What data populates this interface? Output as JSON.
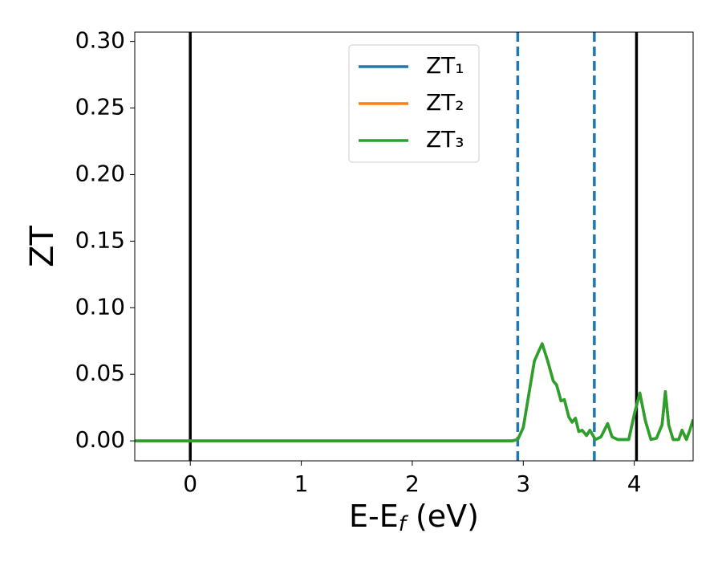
{
  "chart_data": {
    "type": "line",
    "xlabel": [
      "E-E",
      "f",
      " (eV)"
    ],
    "ylabel": "ZT",
    "x": [
      -0.5,
      2.9,
      2.95,
      3.0,
      3.05,
      3.1,
      3.17,
      3.22,
      3.27,
      3.3,
      3.34,
      3.37,
      3.41,
      3.44,
      3.47,
      3.5,
      3.53,
      3.57,
      3.6,
      3.65,
      3.7,
      3.76,
      3.8,
      3.85,
      3.95,
      4.0,
      4.05,
      4.1,
      4.15,
      4.2,
      4.25,
      4.28,
      4.31,
      4.35,
      4.4,
      4.43,
      4.47,
      4.5,
      4.53
    ],
    "series": [
      {
        "name": "ZT₁",
        "color": "#1f77b4",
        "values": [
          0,
          0,
          0.001,
          0.01,
          0.035,
          0.06,
          0.073,
          0.06,
          0.045,
          0.042,
          0.03,
          0.031,
          0.018,
          0.014,
          0.017,
          0.007,
          0.008,
          0.004,
          0.008,
          0.001,
          0.003,
          0.013,
          0.003,
          0.001,
          0.001,
          0.02,
          0.036,
          0.015,
          0.001,
          0.002,
          0.012,
          0.037,
          0.012,
          0.001,
          0.001,
          0.008,
          0.001,
          0.008,
          0.016
        ]
      },
      {
        "name": "ZT₂",
        "color": "#ff7f0e",
        "values": [
          0,
          0,
          0.001,
          0.01,
          0.035,
          0.06,
          0.073,
          0.06,
          0.045,
          0.042,
          0.03,
          0.031,
          0.018,
          0.014,
          0.017,
          0.007,
          0.008,
          0.004,
          0.008,
          0.001,
          0.003,
          0.013,
          0.003,
          0.001,
          0.001,
          0.02,
          0.036,
          0.015,
          0.001,
          0.002,
          0.012,
          0.037,
          0.012,
          0.001,
          0.001,
          0.008,
          0.001,
          0.008,
          0.016
        ]
      },
      {
        "name": "ZT₃",
        "color": "#2ca02c",
        "values": [
          0,
          0,
          0.001,
          0.01,
          0.035,
          0.06,
          0.073,
          0.06,
          0.045,
          0.042,
          0.03,
          0.031,
          0.018,
          0.014,
          0.017,
          0.007,
          0.008,
          0.004,
          0.008,
          0.001,
          0.003,
          0.013,
          0.003,
          0.001,
          0.001,
          0.02,
          0.036,
          0.015,
          0.001,
          0.002,
          0.012,
          0.037,
          0.012,
          0.001,
          0.001,
          0.008,
          0.001,
          0.008,
          0.016
        ]
      }
    ],
    "vlines": [
      {
        "x": 0,
        "color": "#000000",
        "style": "solid"
      },
      {
        "x": 4.02,
        "color": "#000000",
        "style": "solid"
      },
      {
        "x": 2.95,
        "color": "#1f77b4",
        "style": "dashed"
      },
      {
        "x": 3.64,
        "color": "#1f77b4",
        "style": "dashed"
      }
    ],
    "xlim": [
      -0.5,
      4.53
    ],
    "xticks": [
      0,
      1,
      2,
      3,
      4
    ],
    "ylim": [
      -0.015,
      0.307
    ],
    "yticks": [
      {
        "value": 0,
        "label": "0.00"
      },
      {
        "value": 0.05,
        "label": "0.05"
      },
      {
        "value": 0.1,
        "label": "0.10"
      },
      {
        "value": 0.15,
        "label": "0.15"
      },
      {
        "value": 0.2,
        "label": "0.20"
      },
      {
        "value": 0.25,
        "label": "0.25"
      },
      {
        "value": 0.3,
        "label": "0.30"
      }
    ],
    "grid": false,
    "legend": "upper center"
  }
}
